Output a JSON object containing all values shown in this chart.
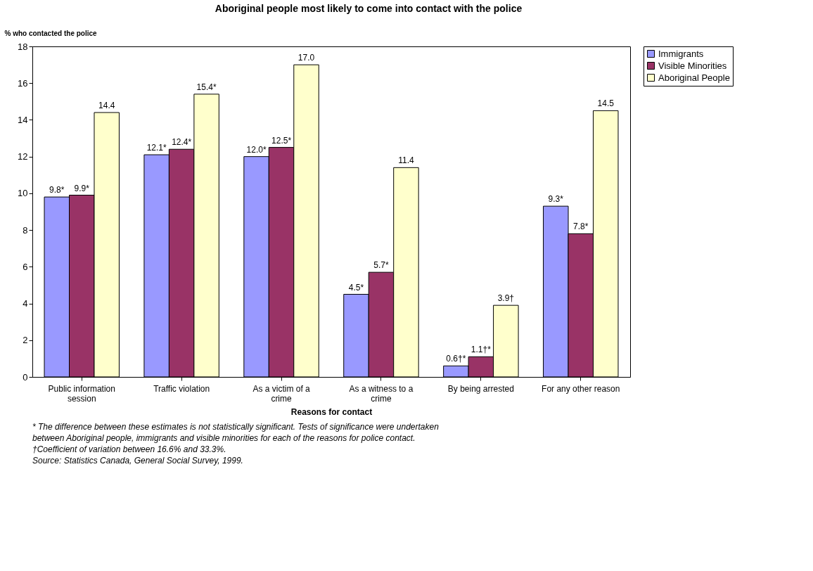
{
  "chart_data": {
    "type": "bar",
    "title": "Aboriginal people most likely to come into contact with the police",
    "xlabel": "Reasons for contact",
    "ylabel": "% who contacted the police",
    "categories": [
      "Public information session",
      "Traffic violation",
      "As a victim of a crime",
      "As a witness to a crime",
      "By being arrested",
      "For any other reason"
    ],
    "series": [
      {
        "name": "Immigrants",
        "color": "#9999ff",
        "values": [
          9.8,
          12.1,
          12.0,
          4.5,
          0.6,
          9.3
        ],
        "value_labels": [
          "9.8*",
          "12.1*",
          "12.0*",
          "4.5*",
          "0.6†*",
          "9.3*"
        ]
      },
      {
        "name": "Visible Minorities",
        "color": "#993366",
        "values": [
          9.9,
          12.4,
          12.5,
          5.7,
          1.1,
          7.8
        ],
        "value_labels": [
          "9.9*",
          "12.4*",
          "12.5*",
          "5.7*",
          "1.1†*",
          "7.8*"
        ]
      },
      {
        "name": "Aboriginal People",
        "color": "#ffffcc",
        "values": [
          14.4,
          15.4,
          17.0,
          11.4,
          3.9,
          14.5
        ],
        "value_labels": [
          "14.4",
          "15.4*",
          "17.0",
          "11.4",
          "3.9†",
          "14.5"
        ]
      }
    ],
    "ylim": [
      0,
      18
    ],
    "yticks": [
      0,
      2,
      4,
      6,
      8,
      10,
      12,
      14,
      16,
      18
    ],
    "grid": false,
    "legend": "right",
    "annotations": [
      "* The difference between these estimates is not statistically significant. Tests of significance were undertaken between Aboriginal people, immigrants and visible minorities for each of the reasons for police contact.",
      "†Coefficient of variation between 16.6% and 33.3%.",
      "Source: Statistics Canada, General Social Survey, 1999."
    ]
  }
}
